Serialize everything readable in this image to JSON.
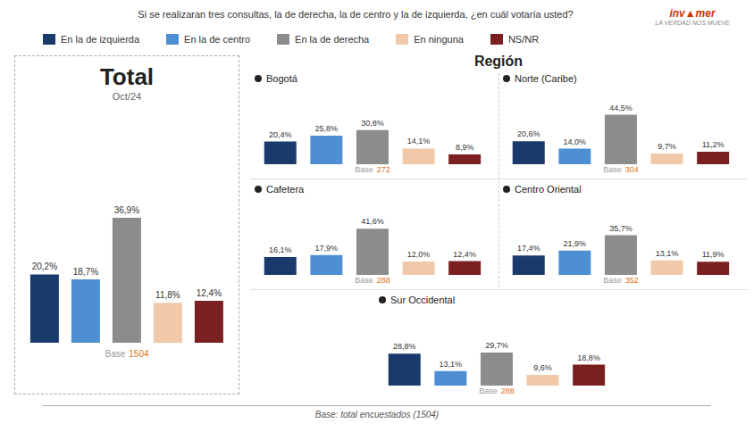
{
  "title": "Si se realizaran tres consultas, la de derecha, la de centro y la de izquierda, ¿en cuál votaría usted?",
  "legend": "top",
  "annotations": [
    "inv▲mer",
    "LA VERDAD NOS MUEVE",
    "Región",
    "Base: total encuestados (1504)"
  ],
  "chart_data": [
    {
      "type": "bar",
      "title": "Total",
      "subtitle": "Oct/24",
      "categories": [
        "En la de izquierda",
        "En la de centro",
        "En la de derecha",
        "En ninguna",
        "NS/NR"
      ],
      "values": [
        20.2,
        18.7,
        36.9,
        11.8,
        12.4
      ],
      "value_labels": [
        "20,2%",
        "18,7%",
        "36,9%",
        "11,8%",
        "12,4%"
      ],
      "colors": [
        "#1a3a6b",
        "#4e8fd4",
        "#8c8c8c",
        "#f2c9a8",
        "#7a2020"
      ],
      "ylim": [
        0,
        67.5
      ],
      "data_labels": true,
      "tick_labels": false,
      "grid": false,
      "annotations": [
        "Base"
      ],
      "base": 1504
    },
    {
      "type": "bar",
      "title": "Bogotá",
      "categories": [
        "En la de izquierda",
        "En la de centro",
        "En la de derecha",
        "En ninguna",
        "NS/NR"
      ],
      "values": [
        20.4,
        25.8,
        30.8,
        14.1,
        8.9
      ],
      "value_labels": [
        "20,4%",
        "25,8%",
        "30,8%",
        "14,1%",
        "8,9%"
      ],
      "colors": [
        "#1a3a6b",
        "#4e8fd4",
        "#8c8c8c",
        "#f2c9a8",
        "#7a2020"
      ],
      "ylim": [
        0,
        67.5
      ],
      "data_labels": true,
      "tick_labels": false,
      "grid": false,
      "annotations": [
        "Base"
      ],
      "base": 272
    },
    {
      "type": "bar",
      "title": "Norte (Caribe)",
      "categories": [
        "En la de izquierda",
        "En la de centro",
        "En la de derecha",
        "En ninguna",
        "NS/NR"
      ],
      "values": [
        20.6,
        14.0,
        44.5,
        9.7,
        11.2
      ],
      "value_labels": [
        "20,6%",
        "14,0%",
        "44,5%",
        "9,7%",
        "11,2%"
      ],
      "colors": [
        "#1a3a6b",
        "#4e8fd4",
        "#8c8c8c",
        "#f2c9a8",
        "#7a2020"
      ],
      "ylim": [
        0,
        67.5
      ],
      "data_labels": true,
      "tick_labels": false,
      "grid": false,
      "annotations": [
        "Base"
      ],
      "base": 304
    },
    {
      "type": "bar",
      "title": "Cafetera",
      "categories": [
        "En la de izquierda",
        "En la de centro",
        "En la de derecha",
        "En ninguna",
        "NS/NR"
      ],
      "values": [
        16.1,
        17.9,
        41.6,
        12.0,
        12.4
      ],
      "value_labels": [
        "16,1%",
        "17,9%",
        "41,6%",
        "12,0%",
        "12,4%"
      ],
      "colors": [
        "#1a3a6b",
        "#4e8fd4",
        "#8c8c8c",
        "#f2c9a8",
        "#7a2020"
      ],
      "ylim": [
        0,
        67.5
      ],
      "data_labels": true,
      "tick_labels": false,
      "grid": false,
      "annotations": [
        "Base"
      ],
      "base": 288
    },
    {
      "type": "bar",
      "title": "Centro Oriental",
      "categories": [
        "En la de izquierda",
        "En la de centro",
        "En la de derecha",
        "En ninguna",
        "NS/NR"
      ],
      "values": [
        17.4,
        21.9,
        35.7,
        13.1,
        11.9
      ],
      "value_labels": [
        "17,4%",
        "21,9%",
        "35,7%",
        "13,1%",
        "11,9%"
      ],
      "colors": [
        "#1a3a6b",
        "#4e8fd4",
        "#8c8c8c",
        "#f2c9a8",
        "#7a2020"
      ],
      "ylim": [
        0,
        67.5
      ],
      "data_labels": true,
      "tick_labels": false,
      "grid": false,
      "annotations": [
        "Base"
      ],
      "base": 352
    },
    {
      "type": "bar",
      "title": "Sur Occidental",
      "categories": [
        "En la de izquierda",
        "En la de centro",
        "En la de derecha",
        "En ninguna",
        "NS/NR"
      ],
      "values": [
        28.8,
        13.1,
        29.7,
        9.6,
        18.8
      ],
      "value_labels": [
        "28,8%",
        "13,1%",
        "29,7%",
        "9,6%",
        "18,8%"
      ],
      "colors": [
        "#1a3a6b",
        "#4e8fd4",
        "#8c8c8c",
        "#f2c9a8",
        "#7a2020"
      ],
      "ylim": [
        0,
        67.5
      ],
      "data_labels": true,
      "tick_labels": false,
      "grid": false,
      "annotations": [
        "Base"
      ],
      "base": 288
    }
  ]
}
